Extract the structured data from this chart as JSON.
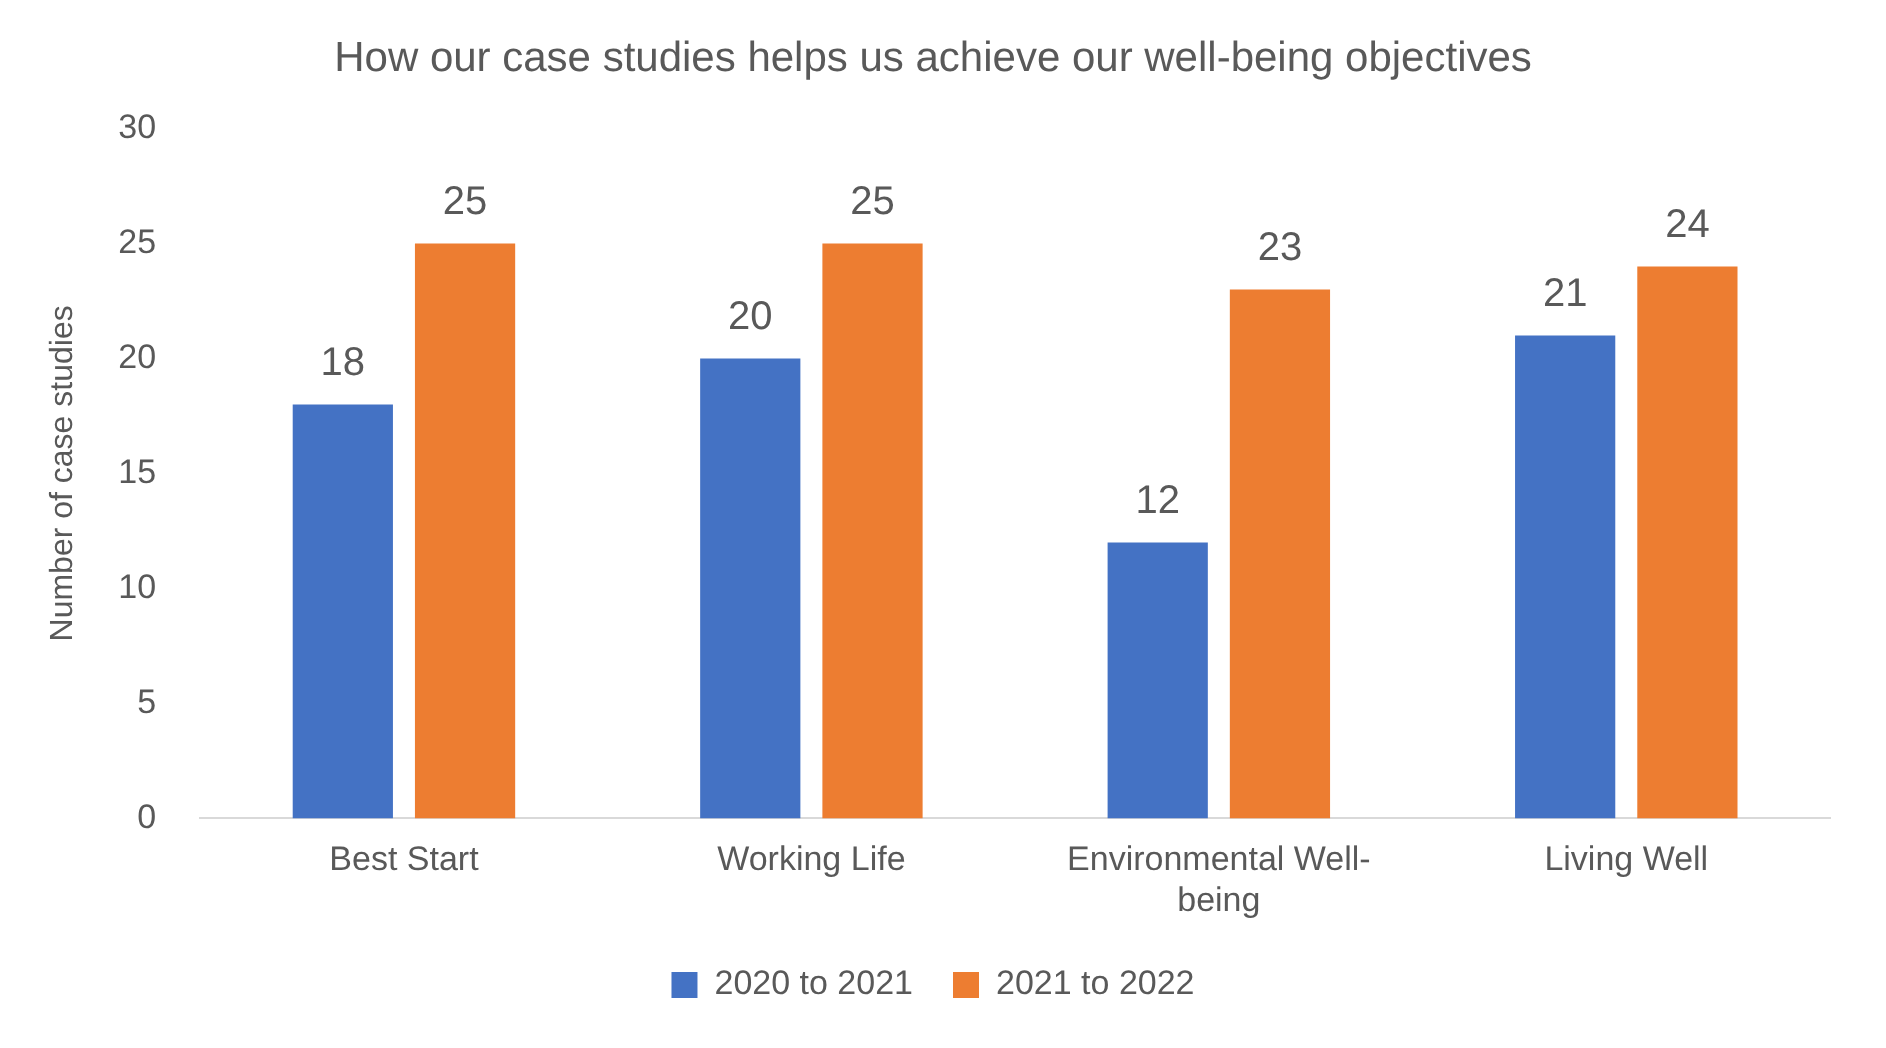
{
  "chart_data": {
    "type": "bar",
    "title": "How our case studies helps us achieve our well-being objectives",
    "ylabel": "Number of case studies",
    "categories": [
      "Best Start",
      "Working Life",
      "Environmental Well-being",
      "Living Well"
    ],
    "series": [
      {
        "name": "2020 to 2021",
        "color": "#4472c4",
        "values": [
          18,
          20,
          12,
          21
        ]
      },
      {
        "name": "2021 to 2022",
        "color": "#ed7d31",
        "values": [
          25,
          25,
          23,
          24
        ]
      }
    ],
    "ylim": [
      0,
      30
    ],
    "yticks": [
      0,
      5,
      10,
      15,
      20,
      25,
      30
    ],
    "grid": false,
    "legend": "bottom",
    "data_labels": true
  }
}
